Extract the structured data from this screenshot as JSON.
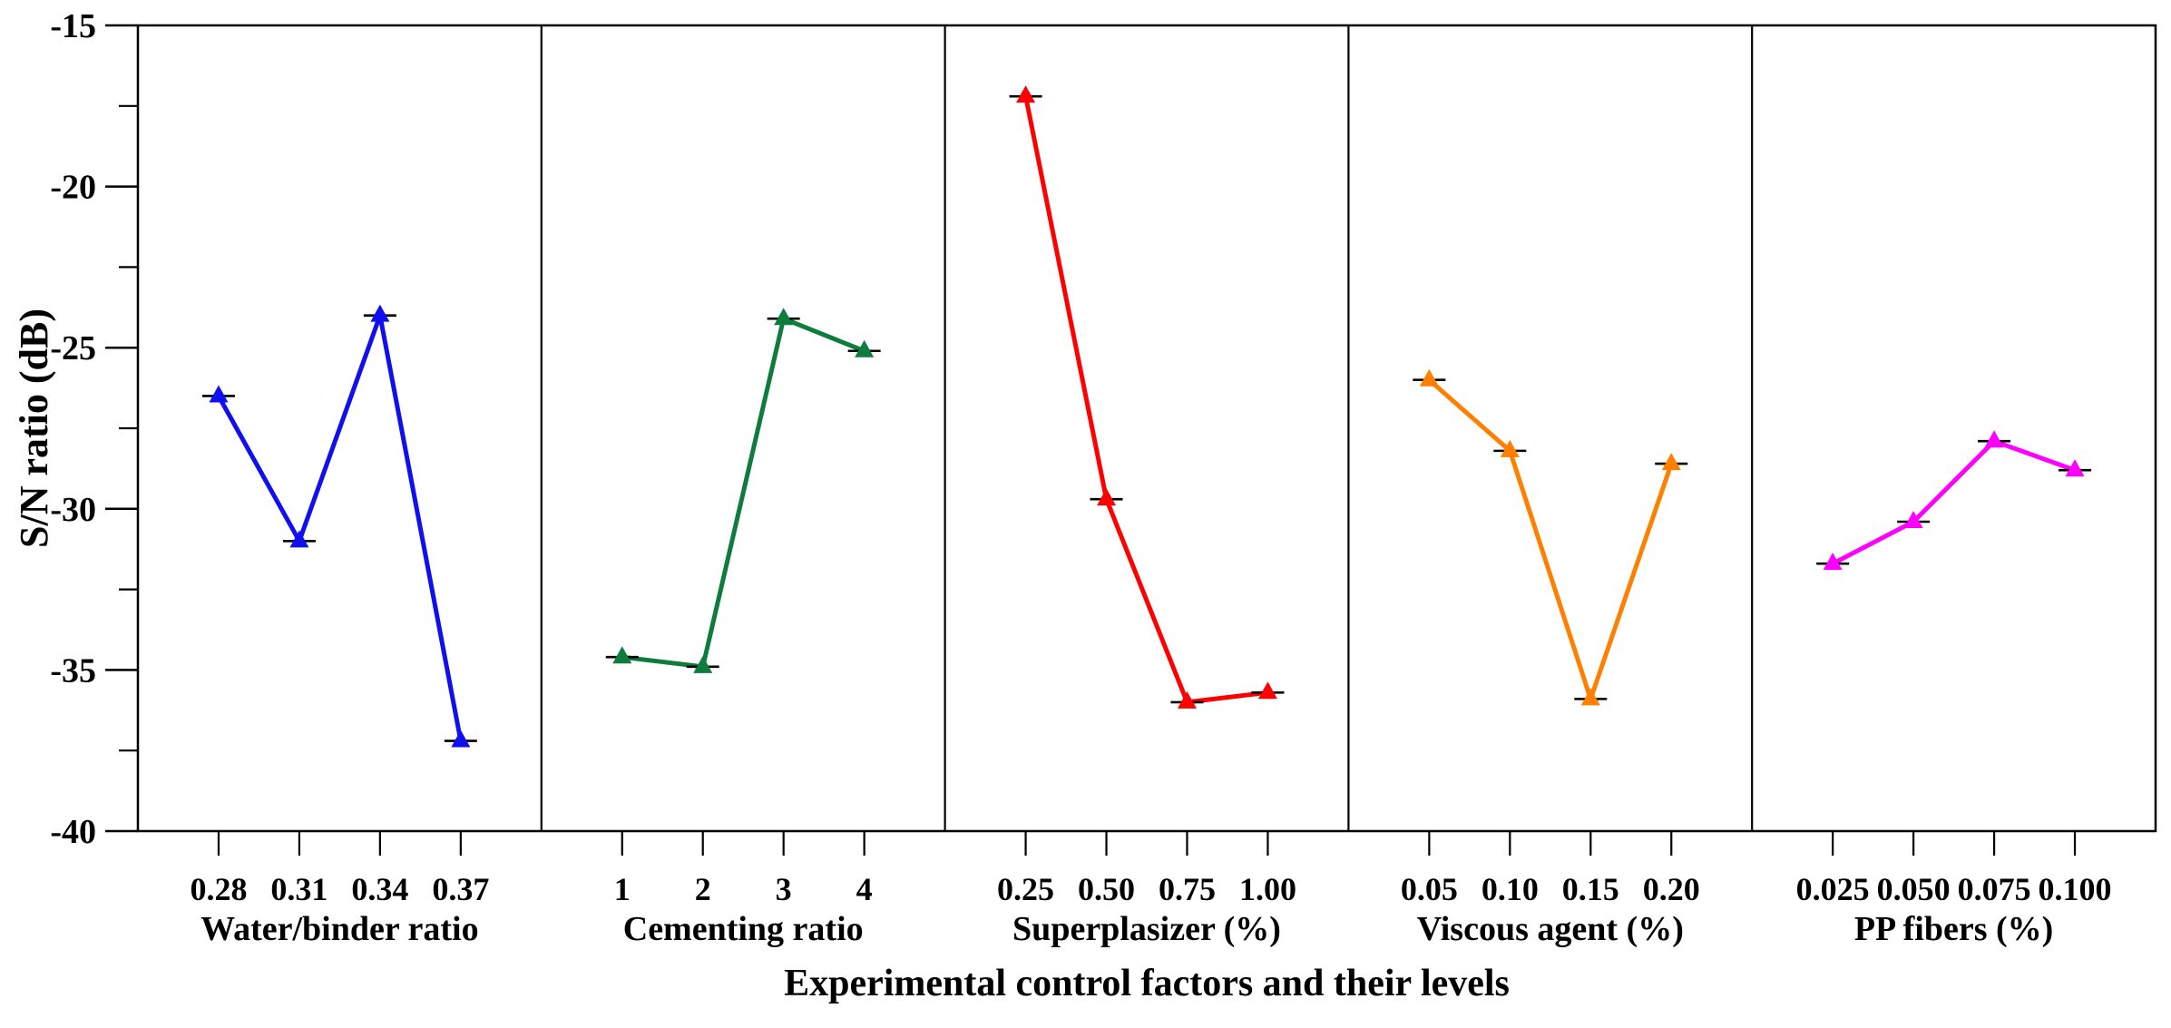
{
  "chart_data": {
    "type": "line",
    "title": "Experimental control factors and their levels",
    "ylabel": "S/N ratio (dB)",
    "ylim": [
      -40,
      -15
    ],
    "y_major_ticks": [
      -15,
      -20,
      -25,
      -30,
      -35,
      -40
    ],
    "y_minor_ticks": [
      -17.5,
      -22.5,
      -27.5,
      -32.5,
      -37.5
    ],
    "marker": "triangle-up",
    "marker_cap_color": "#000000",
    "grid": "off",
    "legend": "none",
    "panels": [
      {
        "factor": "Water/binder ratio",
        "color": "#0F0FEF",
        "categories": [
          "0.28",
          "0.31",
          "0.34",
          "0.37"
        ],
        "values": [
          -26.5,
          -31.0,
          -24.0,
          -37.2
        ]
      },
      {
        "factor": "Cementing ratio",
        "color": "#0E7C3C",
        "categories": [
          "1",
          "2",
          "3",
          "4"
        ],
        "values": [
          -34.6,
          -34.9,
          -24.1,
          -25.1
        ]
      },
      {
        "factor": "Superplasizer (%)",
        "color": "#FF0000",
        "categories": [
          "0.25",
          "0.50",
          "0.75",
          "1.00"
        ],
        "values": [
          -17.2,
          -29.7,
          -36.0,
          -35.7
        ]
      },
      {
        "factor": "Viscous agent (%)",
        "color": "#FF8000",
        "categories": [
          "0.05",
          "0.10",
          "0.15",
          "0.20"
        ],
        "values": [
          -26.0,
          -28.2,
          -35.9,
          -28.6
        ]
      },
      {
        "factor": "PP fibers (%)",
        "color": "#FF00FF",
        "categories": [
          "0.025",
          "0.050",
          "0.075",
          "0.100"
        ],
        "values": [
          -31.7,
          -30.4,
          -27.9,
          -28.8
        ]
      }
    ]
  }
}
